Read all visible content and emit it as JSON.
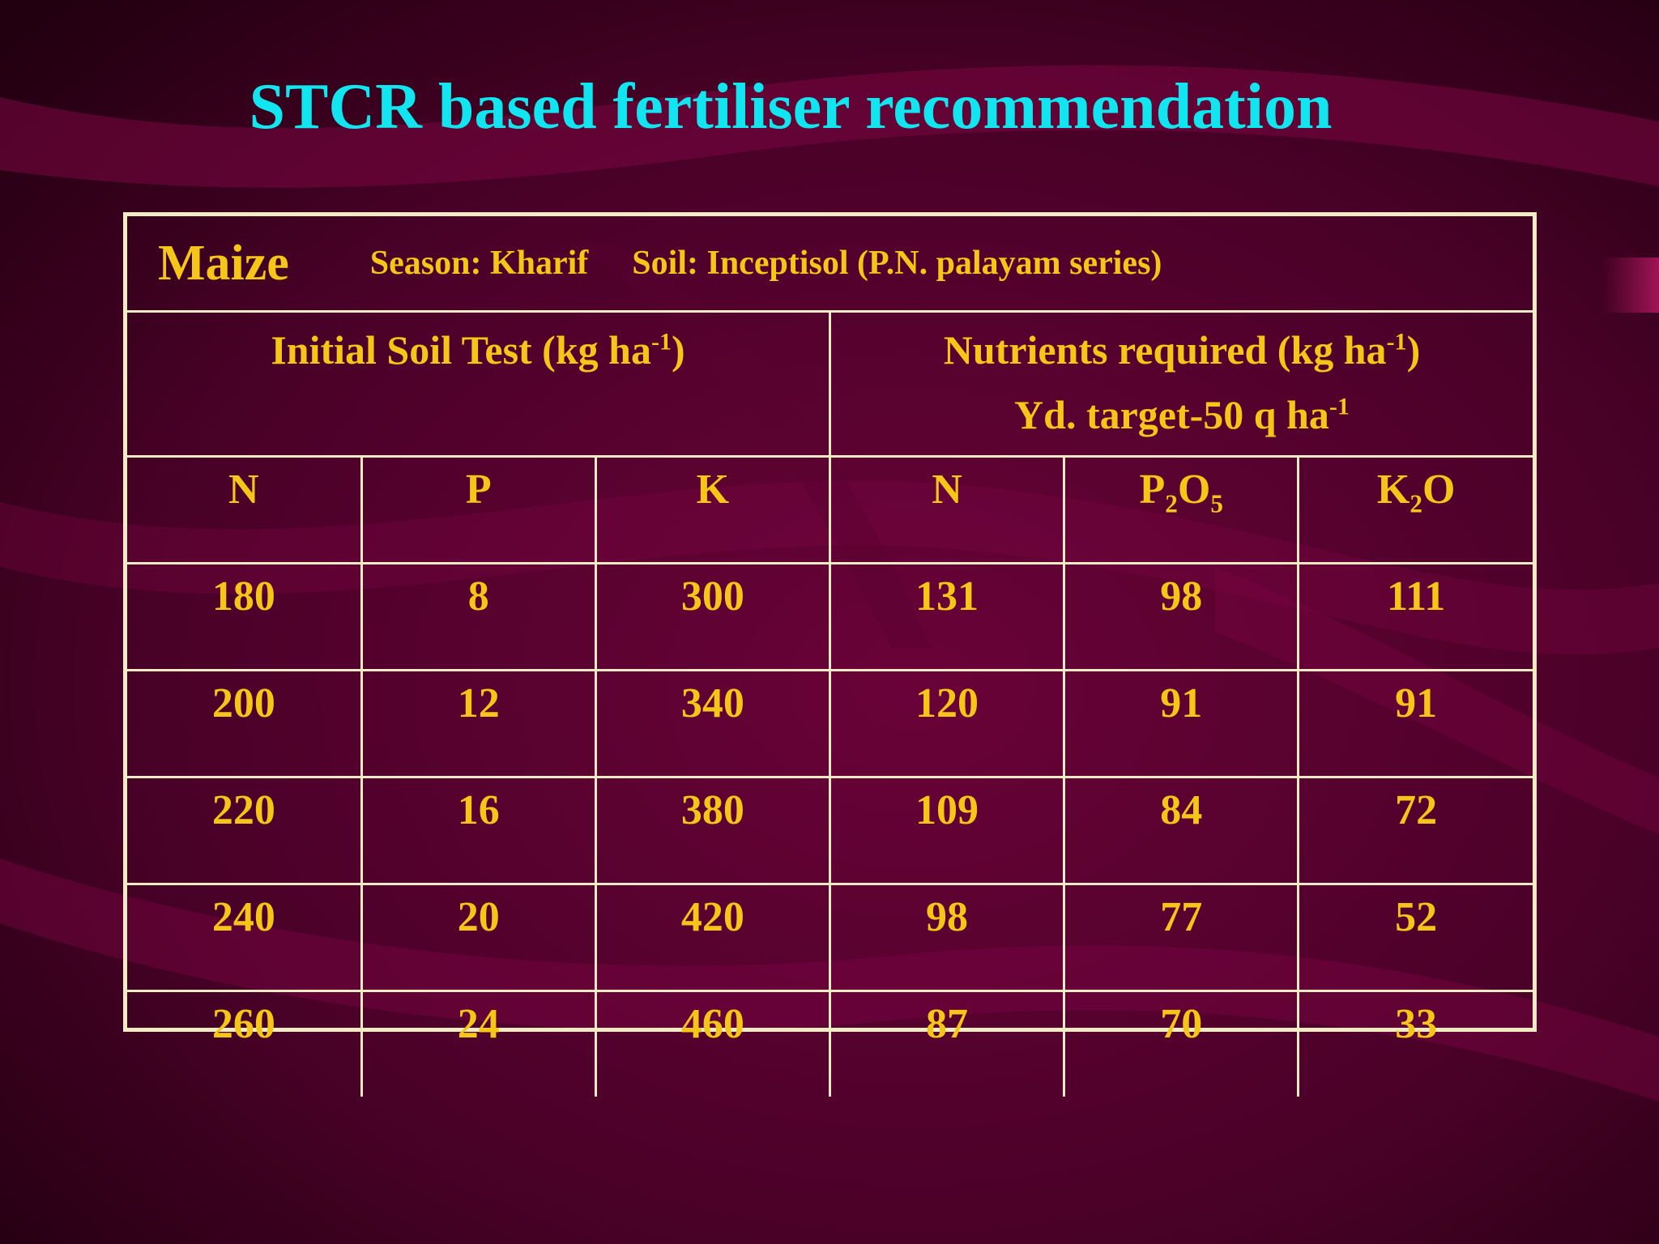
{
  "title": "STCR based fertiliser recommendation",
  "crop": {
    "name": "Maize",
    "season": "Season: Kharif",
    "soil": "Soil: Inceptisol (P.N. palayam series)"
  },
  "groups": {
    "initial": {
      "text": "Initial Soil Test (kg ha",
      "sup": "-1",
      "tail": ")"
    },
    "required": {
      "text": "Nutrients required (kg ha",
      "sup": "-1",
      "tail": ")"
    },
    "target": {
      "text": "Yd. target-50 q ha",
      "sup": "-1"
    }
  },
  "columns": {
    "n1": "N",
    "p": "P",
    "k": "K",
    "n2": "N",
    "p2o5": {
      "a": "P",
      "sub1": "2",
      "b": "O",
      "sub2": "5"
    },
    "k2o": {
      "a": "K",
      "sub1": "2",
      "b": "O"
    }
  },
  "rows": [
    [
      "180",
      "8",
      "300",
      "131",
      "98",
      "111"
    ],
    [
      "200",
      "12",
      "340",
      "120",
      "91",
      "91"
    ],
    [
      "220",
      "16",
      "380",
      "109",
      "84",
      "72"
    ],
    [
      "240",
      "20",
      "420",
      "98",
      "77",
      "52"
    ],
    [
      "260",
      "24",
      "460",
      "87",
      "70",
      "33"
    ]
  ],
  "colors": {
    "title": "#11e6f0",
    "text": "#f5c518",
    "border": "#f2ebc4",
    "background": "#3a0120"
  }
}
